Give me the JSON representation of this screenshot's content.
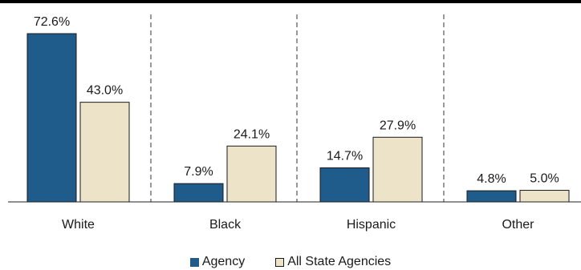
{
  "chart_data": {
    "type": "bar",
    "categories": [
      "White",
      "Black",
      "Hispanic",
      "Other"
    ],
    "series": [
      {
        "name": "Agency",
        "values": [
          72.6,
          7.9,
          14.7,
          4.8
        ],
        "labels": [
          "72.6%",
          "7.9%",
          "14.7%",
          "4.8%"
        ],
        "color": "#1f5c8c"
      },
      {
        "name": "All State Agencies",
        "values": [
          43.0,
          24.1,
          27.9,
          5.0
        ],
        "labels": [
          "43.0%",
          "24.1%",
          "27.9%",
          "5.0%"
        ],
        "color": "#ece3c9"
      }
    ],
    "ylim": [
      0,
      72.6
    ],
    "legend_position": "bottom",
    "grid": false,
    "category_separators": "dashed"
  }
}
